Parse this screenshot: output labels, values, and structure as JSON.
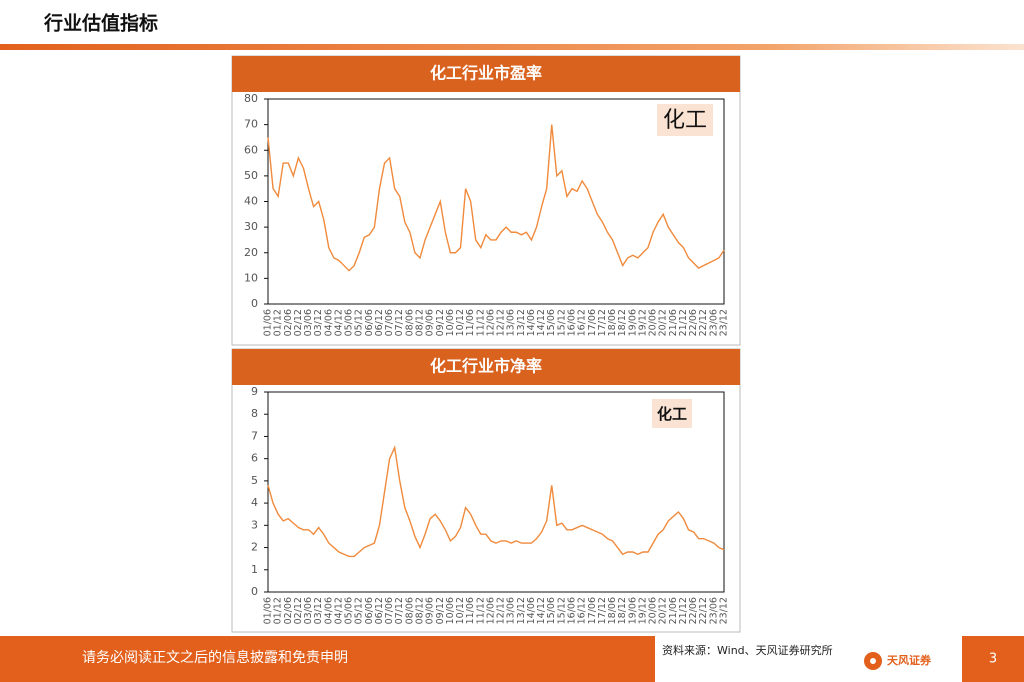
{
  "page": {
    "title": "行业估值指标",
    "footer_note": "请务必阅读正文之后的信息披露和免责申明",
    "source": "资料来源：Wind、天风证券研究所",
    "logo": "天风证券",
    "page_number": "3"
  },
  "chart_data": [
    {
      "type": "line",
      "title": "化工行业市盈率",
      "annotation": "化工",
      "color": "#f08a3c",
      "categories": [
        "01/06",
        null,
        "01/12",
        null,
        "02/06",
        null,
        "02/12",
        null,
        "03/06",
        null,
        "03/12",
        null,
        "04/06",
        null,
        "04/12",
        null,
        "05/06",
        null,
        "05/12",
        null,
        "06/06",
        null,
        "06/12",
        null,
        "07/06",
        null,
        "07/12",
        null,
        "08/06",
        null,
        "08/12",
        null,
        "09/06",
        null,
        "09/12",
        null,
        "10/06",
        null,
        "10/12",
        null,
        "11/06",
        null,
        "11/12",
        null,
        "12/06",
        null,
        "12/12",
        null,
        "13/06",
        null,
        "13/12",
        null,
        "14/06",
        null,
        "14/12",
        null,
        "15/06",
        null,
        "15/12",
        null,
        "16/06",
        null,
        "16/12",
        null,
        "17/06",
        null,
        "17/12",
        null,
        "18/06",
        null,
        "18/12",
        null,
        "19/06",
        null,
        "19/12",
        null,
        "20/06",
        null,
        "20/12",
        null,
        "21/06",
        null,
        "21/12",
        null,
        "22/06",
        null,
        "22/12",
        null,
        "23/06",
        null,
        "23/12"
      ],
      "values": [
        65,
        45,
        42,
        55,
        55,
        50,
        57,
        53,
        45,
        38,
        40,
        33,
        22,
        18,
        17,
        15,
        13,
        15,
        20,
        26,
        27,
        30,
        45,
        55,
        57,
        45,
        42,
        32,
        28,
        20,
        18,
        25,
        30,
        35,
        40,
        28,
        20,
        20,
        22,
        45,
        40,
        25,
        22,
        27,
        25,
        25,
        28,
        30,
        28,
        28,
        27,
        28,
        25,
        30,
        38,
        45,
        70,
        50,
        52,
        42,
        45,
        44,
        48,
        45,
        40,
        35,
        32,
        28,
        25,
        20,
        15,
        18,
        19,
        18,
        20,
        22,
        28,
        32,
        35,
        30,
        27,
        24,
        22,
        18,
        16,
        14,
        15,
        16,
        17,
        18,
        21
      ],
      "ylim": [
        0,
        80
      ],
      "yticks": [
        0,
        10,
        20,
        30,
        40,
        50,
        60,
        70,
        80
      ]
    },
    {
      "type": "line",
      "title": "化工行业市净率",
      "annotation": "化工",
      "color": "#f08a3c",
      "categories": [
        "01/06",
        null,
        "01/12",
        null,
        "02/06",
        null,
        "02/12",
        null,
        "03/06",
        null,
        "03/12",
        null,
        "04/06",
        null,
        "04/12",
        null,
        "05/06",
        null,
        "05/12",
        null,
        "06/06",
        null,
        "06/12",
        null,
        "07/06",
        null,
        "07/12",
        null,
        "08/06",
        null,
        "08/12",
        null,
        "09/06",
        null,
        "09/12",
        null,
        "10/06",
        null,
        "10/12",
        null,
        "11/06",
        null,
        "11/12",
        null,
        "12/06",
        null,
        "12/12",
        null,
        "13/06",
        null,
        "13/12",
        null,
        "14/06",
        null,
        "14/12",
        null,
        "15/06",
        null,
        "15/12",
        null,
        "16/06",
        null,
        "16/12",
        null,
        "17/06",
        null,
        "17/12",
        null,
        "18/06",
        null,
        "18/12",
        null,
        "19/06",
        null,
        "19/12",
        null,
        "20/06",
        null,
        "20/12",
        null,
        "21/06",
        null,
        "21/12",
        null,
        "22/06",
        null,
        "22/12",
        null,
        "23/06",
        null,
        "23/12"
      ],
      "values": [
        4.8,
        4.0,
        3.5,
        3.2,
        3.3,
        3.1,
        2.9,
        2.8,
        2.8,
        2.6,
        2.9,
        2.6,
        2.2,
        2.0,
        1.8,
        1.7,
        1.6,
        1.6,
        1.8,
        2.0,
        2.1,
        2.2,
        3.0,
        4.5,
        6.0,
        6.5,
        5.0,
        3.8,
        3.2,
        2.5,
        2.0,
        2.6,
        3.3,
        3.5,
        3.2,
        2.8,
        2.3,
        2.5,
        2.9,
        3.8,
        3.5,
        3.0,
        2.6,
        2.6,
        2.3,
        2.2,
        2.3,
        2.3,
        2.2,
        2.3,
        2.2,
        2.2,
        2.2,
        2.4,
        2.7,
        3.2,
        4.8,
        3.0,
        3.1,
        2.8,
        2.8,
        2.9,
        3.0,
        2.9,
        2.8,
        2.7,
        2.6,
        2.4,
        2.3,
        2.0,
        1.7,
        1.8,
        1.8,
        1.7,
        1.8,
        1.8,
        2.2,
        2.6,
        2.8,
        3.2,
        3.4,
        3.6,
        3.3,
        2.8,
        2.7,
        2.4,
        2.4,
        2.3,
        2.2,
        2.0,
        1.9
      ],
      "ylim": [
        0,
        9
      ],
      "yticks": [
        0,
        1,
        2,
        3,
        4,
        5,
        6,
        7,
        8,
        9
      ]
    }
  ]
}
